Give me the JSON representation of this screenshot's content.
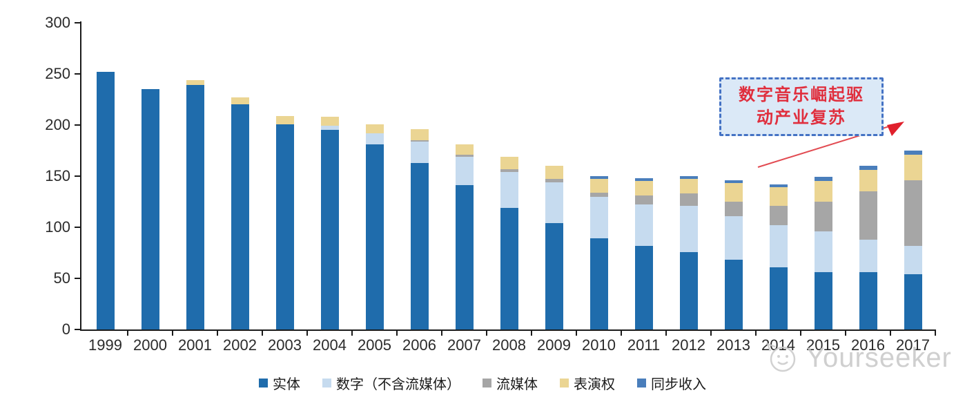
{
  "chart_data": {
    "type": "bar",
    "stacked": true,
    "title": "",
    "xlabel": "",
    "ylabel": "",
    "ylim": [
      0,
      300
    ],
    "ytick_step": 50,
    "grid": false,
    "legend_position": "bottom",
    "categories": [
      "1999",
      "2000",
      "2001",
      "2002",
      "2003",
      "2004",
      "2005",
      "2006",
      "2007",
      "2008",
      "2009",
      "2010",
      "2011",
      "2012",
      "2013",
      "2014",
      "2015",
      "2016",
      "2017"
    ],
    "series": [
      {
        "name": "实体",
        "color": "#1F6CAC",
        "values": [
          252,
          235,
          239,
          220,
          201,
          195,
          181,
          163,
          141,
          119,
          104,
          89,
          82,
          76,
          68,
          61,
          56,
          56,
          54
        ]
      },
      {
        "name": "数字（不含流媒体）",
        "color": "#C6DBEF",
        "values": [
          0,
          0,
          0,
          0,
          0,
          4,
          11,
          21,
          28,
          35,
          40,
          41,
          40,
          45,
          43,
          41,
          40,
          32,
          28
        ]
      },
      {
        "name": "流媒体",
        "color": "#A6A6A6",
        "values": [
          0,
          0,
          0,
          0,
          0,
          0,
          0,
          1,
          2,
          3,
          3,
          4,
          9,
          12,
          14,
          19,
          29,
          47,
          64
        ]
      },
      {
        "name": "表演权",
        "color": "#EBD593",
        "values": [
          0,
          0,
          5,
          7,
          8,
          9,
          9,
          11,
          10,
          12,
          13,
          13,
          14,
          14,
          18,
          18,
          20,
          21,
          25
        ]
      },
      {
        "name": "同步收入",
        "color": "#4A7EBB",
        "values": [
          0,
          0,
          0,
          0,
          0,
          0,
          0,
          0,
          0,
          0,
          0,
          3,
          3,
          3,
          3,
          3,
          4,
          4,
          4
        ]
      }
    ]
  },
  "annotation": {
    "line1": "数字音乐崛起驱",
    "line2": "动产业复苏",
    "text_color": "#E02E3D",
    "box_fill": "#DBE9F7",
    "box_border": "#4472C4",
    "arrow_color": "#E24B52"
  },
  "watermark": {
    "text": "Yourseeker",
    "icon": "cat-face-logo-icon",
    "color": "#c7c7c7"
  },
  "axis": {
    "line_color": "#1a1a1a",
    "label_color": "#2b2b2b"
  }
}
